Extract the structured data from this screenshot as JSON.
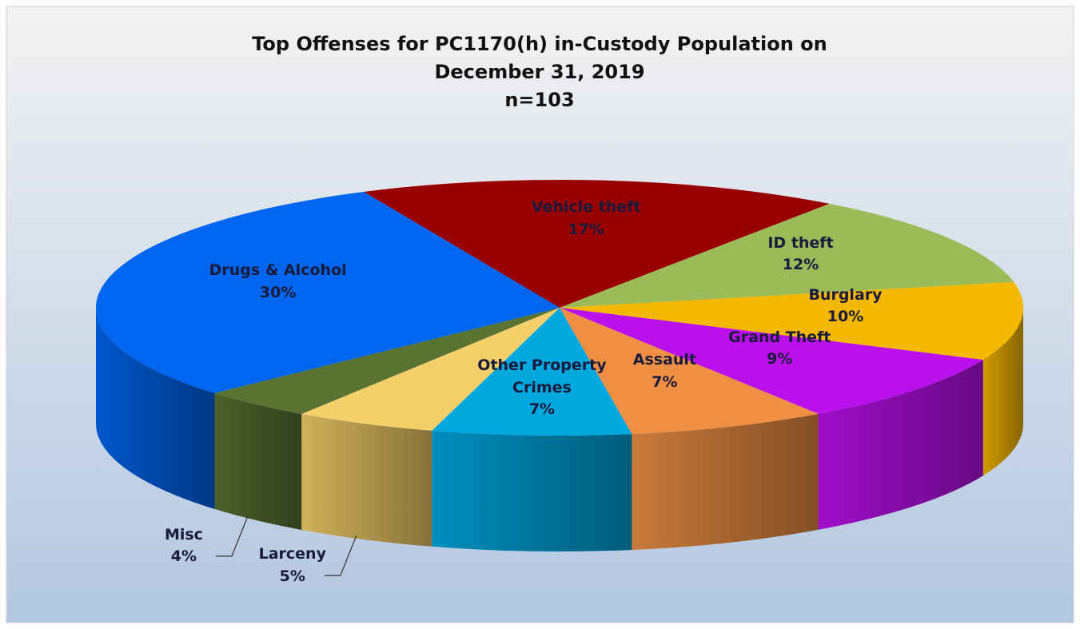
{
  "chart_data": {
    "type": "pie",
    "title": "Top Offenses for PC1170(h) in-Custody Population on December 31, 2019",
    "subtitle": "n=103",
    "categories": [
      "Vehicle theft",
      "ID theft",
      "Burglary",
      "Grand Theft",
      "Assault",
      "Other Property Crimes",
      "Larceny",
      "Misc",
      "Drugs & Alcohol"
    ],
    "values": [
      17,
      12,
      10,
      9,
      7,
      7,
      5,
      4,
      30
    ],
    "value_labels": [
      "17%",
      "12%",
      "10%",
      "9%",
      "7%",
      "7%",
      "5%",
      "4%",
      "30%"
    ],
    "colors": [
      "#990000",
      "#9bbb59",
      "#f5b800",
      "#bb10ee",
      "#ee8f44",
      "#00a8e0",
      "#f5d06a",
      "#5a7232",
      "#0066f0"
    ]
  }
}
